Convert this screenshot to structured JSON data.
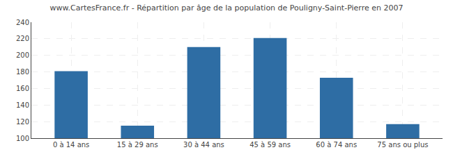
{
  "chart_data": {
    "type": "bar",
    "title": "www.CartesFrance.fr - Répartition par âge de la population de Pouligny-Saint-Pierre en 2007",
    "categories": [
      "0 à 14 ans",
      "15 à 29 ans",
      "30 à 44 ans",
      "45 à 59 ans",
      "60 à 74 ans",
      "75 ans ou plus"
    ],
    "values": [
      181,
      115,
      210,
      221,
      173,
      117
    ],
    "color": "#2e6da4",
    "ylim": [
      100,
      240
    ],
    "yticks": [
      100,
      120,
      140,
      160,
      180,
      200,
      220,
      240
    ],
    "grid": true
  }
}
